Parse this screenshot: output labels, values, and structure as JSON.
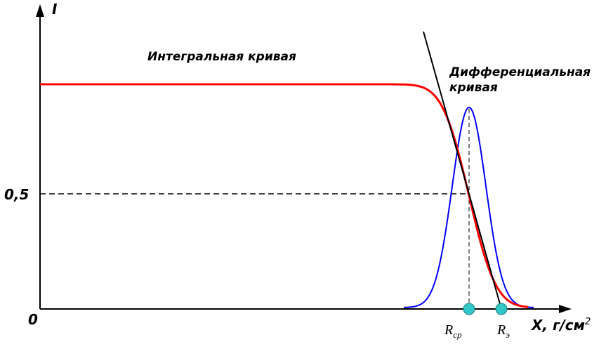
{
  "axes": {
    "y_label": "I",
    "half_label": "0,5",
    "origin_label": "0",
    "x_label": "X, г/см",
    "x_label_sup": "2"
  },
  "curves": {
    "integral_label": "Интегральная кривая",
    "differential_label_lines": [
      "Дифференциальная",
      "кривая"
    ]
  },
  "points": [
    {
      "symbol": "R",
      "subscript": "ср"
    },
    {
      "symbol": "R",
      "subscript": "э"
    }
  ]
}
